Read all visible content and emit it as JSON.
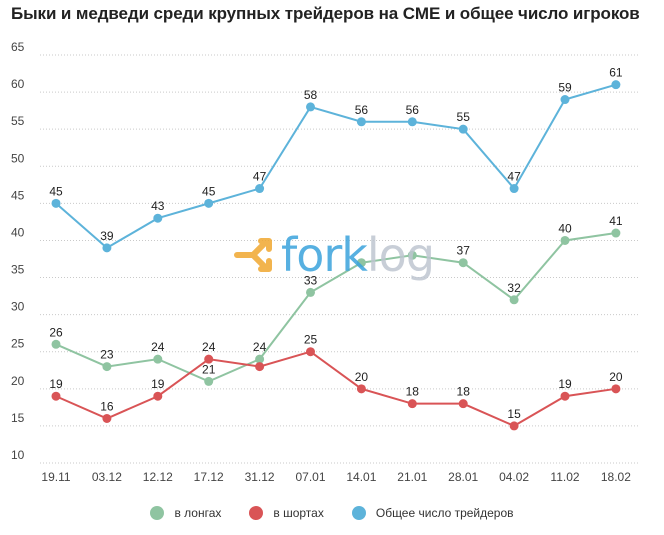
{
  "title": "Быки и медведи среди крупных трейдеров на CME и общее число игроков",
  "watermark": {
    "part1": "fork",
    "part2": "log",
    "color1": "#3aa3dc",
    "color2": "#bfc6d1",
    "icon_color": "#f0a830"
  },
  "chart_data": {
    "type": "line",
    "categories": [
      "19.11",
      "03.12",
      "12.12",
      "17.12",
      "31.12",
      "07.01",
      "14.01",
      "21.01",
      "28.01",
      "04.02",
      "11.02",
      "18.02"
    ],
    "ylim": [
      10,
      65
    ],
    "yticks": [
      "10",
      "15",
      "20",
      "25",
      "30",
      "35",
      "40",
      "45",
      "50",
      "55",
      "60",
      "65"
    ],
    "grid": "horizontal-dotted",
    "legend_position": "bottom",
    "series": [
      {
        "name": "в лонгах",
        "color": "#8fc4a1",
        "values": [
          26,
          23,
          24,
          21,
          24,
          33,
          37,
          38,
          37,
          32,
          40,
          41
        ],
        "labels": [
          "26",
          "23",
          "24",
          "21",
          "24",
          "33",
          "",
          "",
          "37",
          "32",
          "40",
          "41"
        ]
      },
      {
        "name": "в шортах",
        "color": "#d95456",
        "values": [
          19,
          16,
          19,
          24,
          23,
          25,
          20,
          18,
          18,
          15,
          19,
          20
        ],
        "labels": [
          "19",
          "16",
          "19",
          "24",
          "",
          "25",
          "20",
          "18",
          "18",
          "15",
          "19",
          "20"
        ]
      },
      {
        "name": "Общее число трейдеров",
        "color": "#5db3da",
        "values": [
          45,
          39,
          43,
          45,
          47,
          58,
          56,
          56,
          55,
          47,
          59,
          61
        ],
        "labels": [
          "45",
          "39",
          "43",
          "45",
          "47",
          "58",
          "56",
          "56",
          "55",
          "47",
          "59",
          "61"
        ]
      }
    ]
  }
}
